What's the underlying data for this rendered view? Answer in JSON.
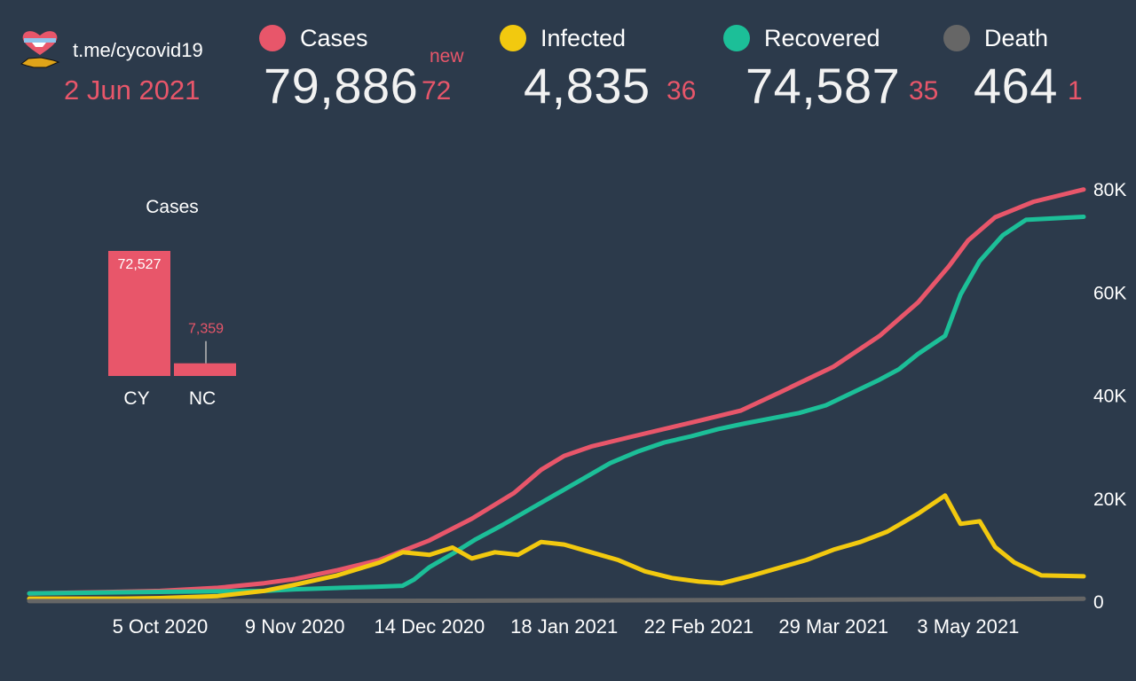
{
  "header": {
    "link_text": "t.me/cycovid19",
    "date": "2 Jun 2021",
    "new_label": "new",
    "stats": [
      {
        "label": "Cases",
        "total": "79,886",
        "delta": "72",
        "color": "#e8566a"
      },
      {
        "label": "Infected",
        "total": "4,835",
        "delta": "36",
        "color": "#f2c90f"
      },
      {
        "label": "Recovered",
        "total": "74,587",
        "delta": "35",
        "color": "#1cbf98"
      },
      {
        "label": "Death",
        "total": "464",
        "delta": "1",
        "color": "#666666"
      }
    ]
  },
  "logo": {
    "icon": "heart-cyprus-logo-icon"
  },
  "chart_data": [
    {
      "type": "line",
      "x_type": "date",
      "x_ticks": [
        "5 Oct 2020",
        "9 Nov 2020",
        "14 Dec 2020",
        "18 Jan 2021",
        "22 Feb 2021",
        "29 Mar 2021",
        "3 May 2021"
      ],
      "y_ticks": [
        "0",
        "20K",
        "40K",
        "60K",
        "80K"
      ],
      "ylim": [
        0,
        80000
      ],
      "xlim": [
        "2020-09-01",
        "2021-06-02"
      ],
      "grid": false,
      "series": [
        {
          "name": "Cases",
          "color": "#e8566a",
          "points": [
            [
              "2020-09-01",
              1500
            ],
            [
              "2020-09-20",
              1750
            ],
            [
              "2020-10-05",
              2000
            ],
            [
              "2020-10-20",
              2600
            ],
            [
              "2020-11-01",
              3500
            ],
            [
              "2020-11-09",
              4300
            ],
            [
              "2020-11-20",
              6000
            ],
            [
              "2020-12-01",
              8000
            ],
            [
              "2020-12-14",
              11800
            ],
            [
              "2020-12-25",
              16000
            ],
            [
              "2021-01-05",
              21000
            ],
            [
              "2021-01-12",
              25500
            ],
            [
              "2021-01-18",
              28200
            ],
            [
              "2021-01-25",
              30000
            ],
            [
              "2021-02-05",
              32000
            ],
            [
              "2021-02-22",
              35000
            ],
            [
              "2021-03-05",
              37000
            ],
            [
              "2021-03-15",
              40500
            ],
            [
              "2021-03-29",
              45500
            ],
            [
              "2021-04-10",
              51500
            ],
            [
              "2021-04-20",
              58000
            ],
            [
              "2021-04-28",
              65000
            ],
            [
              "2021-05-03",
              70000
            ],
            [
              "2021-05-10",
              74500
            ],
            [
              "2021-05-20",
              77500
            ],
            [
              "2021-06-02",
              79886
            ]
          ]
        },
        {
          "name": "Recovered",
          "color": "#1cbf98",
          "points": [
            [
              "2020-09-01",
              1500
            ],
            [
              "2020-10-05",
              1800
            ],
            [
              "2020-11-01",
              2000
            ],
            [
              "2020-11-09",
              2300
            ],
            [
              "2020-11-30",
              2800
            ],
            [
              "2020-12-07",
              3000
            ],
            [
              "2020-12-10",
              4200
            ],
            [
              "2020-12-14",
              6600
            ],
            [
              "2020-12-20",
              9200
            ],
            [
              "2020-12-26",
              12000
            ],
            [
              "2021-01-02",
              14800
            ],
            [
              "2021-01-09",
              17800
            ],
            [
              "2021-01-16",
              20800
            ],
            [
              "2021-01-23",
              23800
            ],
            [
              "2021-01-30",
              26800
            ],
            [
              "2021-02-06",
              29000
            ],
            [
              "2021-02-13",
              30800
            ],
            [
              "2021-02-20",
              32000
            ],
            [
              "2021-02-27",
              33400
            ],
            [
              "2021-03-06",
              34500
            ],
            [
              "2021-03-13",
              35500
            ],
            [
              "2021-03-20",
              36500
            ],
            [
              "2021-03-27",
              38000
            ],
            [
              "2021-04-03",
              40500
            ],
            [
              "2021-04-10",
              43000
            ],
            [
              "2021-04-15",
              45000
            ],
            [
              "2021-04-20",
              48000
            ],
            [
              "2021-04-27",
              51500
            ],
            [
              "2021-05-01",
              59500
            ],
            [
              "2021-05-06",
              66000
            ],
            [
              "2021-05-12",
              71000
            ],
            [
              "2021-05-18",
              74000
            ],
            [
              "2021-06-02",
              74587
            ]
          ]
        },
        {
          "name": "Infected",
          "color": "#f2c90f",
          "points": [
            [
              "2020-09-01",
              500
            ],
            [
              "2020-09-25",
              500
            ],
            [
              "2020-10-05",
              600
            ],
            [
              "2020-10-20",
              1000
            ],
            [
              "2020-11-01",
              2000
            ],
            [
              "2020-11-09",
              3200
            ],
            [
              "2020-11-20",
              5000
            ],
            [
              "2020-12-01",
              7500
            ],
            [
              "2020-12-07",
              9500
            ],
            [
              "2020-12-14",
              9000
            ],
            [
              "2020-12-20",
              10400
            ],
            [
              "2020-12-25",
              8300
            ],
            [
              "2020-12-31",
              9500
            ],
            [
              "2021-01-06",
              9000
            ],
            [
              "2021-01-12",
              11500
            ],
            [
              "2021-01-18",
              11000
            ],
            [
              "2021-01-25",
              9500
            ],
            [
              "2021-02-01",
              8000
            ],
            [
              "2021-02-08",
              5800
            ],
            [
              "2021-02-15",
              4500
            ],
            [
              "2021-02-22",
              3800
            ],
            [
              "2021-02-28",
              3500
            ],
            [
              "2021-03-08",
              5000
            ],
            [
              "2021-03-15",
              6500
            ],
            [
              "2021-03-22",
              8000
            ],
            [
              "2021-03-29",
              10000
            ],
            [
              "2021-04-05",
              11500
            ],
            [
              "2021-04-12",
              13500
            ],
            [
              "2021-04-20",
              17000
            ],
            [
              "2021-04-27",
              20500
            ],
            [
              "2021-05-01",
              15000
            ],
            [
              "2021-05-06",
              15500
            ],
            [
              "2021-05-10",
              10500
            ],
            [
              "2021-05-15",
              7500
            ],
            [
              "2021-05-22",
              5000
            ],
            [
              "2021-06-02",
              4835
            ]
          ]
        },
        {
          "name": "Death",
          "color": "#666666",
          "points": [
            [
              "2020-09-01",
              20
            ],
            [
              "2020-12-14",
              90
            ],
            [
              "2021-03-01",
              220
            ],
            [
              "2021-06-02",
              464
            ]
          ]
        }
      ]
    },
    {
      "type": "bar",
      "title": "Cases",
      "categories": [
        "CY",
        "NC"
      ],
      "values": [
        72527,
        7359
      ],
      "value_labels": [
        "72,527",
        "7,359"
      ],
      "color": "#e8566a"
    }
  ]
}
